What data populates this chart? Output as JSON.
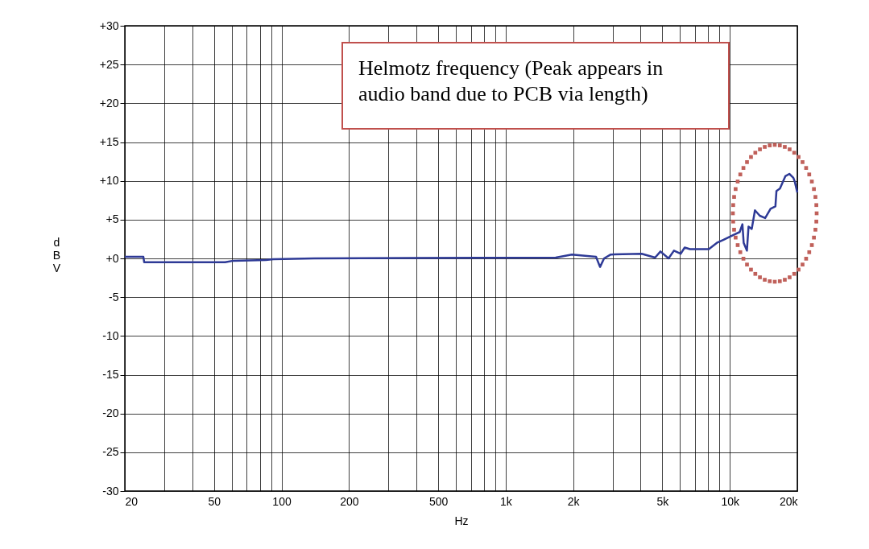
{
  "chart_data": {
    "type": "line",
    "xlabel": "Hz",
    "ylabel": "dBV",
    "log": "x",
    "grid": true,
    "legend": false,
    "marker": "none",
    "line_style": "solid",
    "xlim": [
      20,
      20000
    ],
    "ylim": [
      -30,
      30
    ],
    "xticks": [
      20,
      {
        "value": 30,
        "label": null
      },
      {
        "value": 40,
        "label": null
      },
      50,
      {
        "value": 60,
        "label": null
      },
      {
        "value": 70,
        "label": null
      },
      {
        "value": 80,
        "label": null
      },
      {
        "value": 90,
        "label": null
      },
      100,
      200,
      {
        "value": 300,
        "label": null
      },
      {
        "value": 400,
        "label": null
      },
      500,
      {
        "value": 600,
        "label": null
      },
      {
        "value": 700,
        "label": null
      },
      {
        "value": 800,
        "label": null
      },
      {
        "value": 900,
        "label": null
      },
      {
        "value": 1000,
        "label": "1k"
      },
      {
        "value": 2000,
        "label": "2k"
      },
      {
        "value": 3000,
        "label": null
      },
      {
        "value": 4000,
        "label": null
      },
      {
        "value": 5000,
        "label": "5k"
      },
      {
        "value": 6000,
        "label": null
      },
      {
        "value": 7000,
        "label": null
      },
      {
        "value": 8000,
        "label": null
      },
      {
        "value": 9000,
        "label": null
      },
      {
        "value": 10000,
        "label": "10k"
      },
      {
        "value": 20000,
        "label": "20k"
      }
    ],
    "yticks": [
      {
        "value": 30,
        "label": "+30"
      },
      {
        "value": 25,
        "label": "+25"
      },
      {
        "value": 20,
        "label": "+20"
      },
      {
        "value": 15,
        "label": "+15"
      },
      {
        "value": 10,
        "label": "+10"
      },
      {
        "value": 5,
        "label": "+5"
      },
      {
        "value": 0,
        "label": "+0"
      },
      -5,
      -10,
      -15,
      -20,
      -25,
      -30
    ],
    "annotations": [
      "Helmotz frequency (Peak appears in audio band due to PCB via length)"
    ],
    "series": [
      {
        "color": "#2e3a96",
        "x": [
          20,
          24.2,
          24.4,
          56,
          61,
          85,
          92,
          140,
          1672,
          1974,
          2530,
          2636,
          2748,
          2944,
          4044,
          4640,
          4904,
          5328,
          5632,
          6032,
          6288,
          6644,
          8058,
          8750,
          9376,
          10330,
          11064,
          11378,
          11528,
          11916,
          12116,
          12524,
          12942,
          13602,
          14376,
          15192,
          15968,
          16142,
          16726,
          17682,
          18430,
          19206,
          19482,
          20000
        ],
        "values": [
          0.2,
          0.2,
          -0.5,
          -0.5,
          -0.3,
          -0.2,
          -0.1,
          0,
          0.1,
          0.5,
          0.2,
          -1.1,
          0,
          0.5,
          0.6,
          0.1,
          0.9,
          0,
          1.0,
          0.6,
          1.4,
          1.2,
          1.2,
          2.0,
          2.4,
          3.0,
          3.4,
          4.4,
          2.0,
          1.0,
          4.1,
          3.8,
          6.2,
          5.5,
          5.2,
          6.4,
          6.7,
          8.7,
          9.0,
          10.6,
          10.9,
          10.4,
          9.9,
          8.5
        ]
      }
    ]
  }
}
